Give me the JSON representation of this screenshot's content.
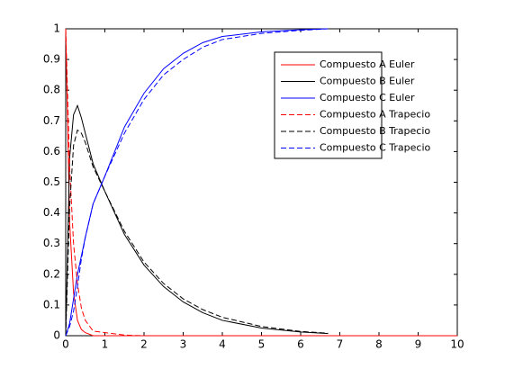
{
  "chart_data": {
    "type": "line",
    "x": [
      0,
      0.1,
      0.2,
      0.3,
      0.4,
      0.5,
      0.7,
      1,
      1.5,
      2,
      2.5,
      3,
      3.5,
      4,
      5,
      6,
      6.7,
      8,
      10
    ],
    "series": [
      {
        "name": "Compuesto A Euler",
        "color": "#ff0000",
        "dash": false,
        "values": [
          1,
          0.37,
          0.14,
          0.05,
          0.02,
          0.01,
          0,
          0,
          0,
          0,
          0,
          0,
          0,
          0,
          0,
          0,
          0,
          0,
          0
        ]
      },
      {
        "name": "Compuesto B Euler",
        "color": "#000000",
        "dash": false,
        "values": [
          0,
          0.58,
          0.72,
          0.75,
          0.71,
          0.66,
          0.56,
          0.47,
          0.33,
          0.23,
          0.16,
          0.11,
          0.075,
          0.05,
          0.025,
          0.012,
          0.007,
          null,
          null
        ]
      },
      {
        "name": "Compuesto C Euler",
        "color": "#0000ff",
        "dash": false,
        "values": [
          0,
          0.04,
          0.12,
          0.2,
          0.26,
          0.32,
          0.43,
          0.52,
          0.68,
          0.79,
          0.87,
          0.92,
          0.955,
          0.975,
          0.99,
          0.997,
          1,
          null,
          null
        ]
      },
      {
        "name": "Compuesto A Trapecio",
        "color": "#ff0000",
        "dash": true,
        "values": [
          1,
          0.55,
          0.3,
          0.17,
          0.09,
          0.05,
          0.015,
          0.01,
          0.002,
          0,
          0,
          0,
          0,
          0,
          0,
          0,
          0,
          0,
          0
        ]
      },
      {
        "name": "Compuesto B Trapecio",
        "color": "#000000",
        "dash": true,
        "values": [
          0,
          0.42,
          0.62,
          0.67,
          0.66,
          0.63,
          0.55,
          0.47,
          0.34,
          0.24,
          0.17,
          0.12,
          0.085,
          0.06,
          0.03,
          0.014,
          0.008,
          null,
          null
        ]
      },
      {
        "name": "Compuesto C Trapecio",
        "color": "#0000ff",
        "dash": true,
        "values": [
          0,
          0.03,
          0.08,
          0.16,
          0.25,
          0.32,
          0.43,
          0.52,
          0.66,
          0.77,
          0.85,
          0.9,
          0.94,
          0.965,
          0.985,
          0.995,
          1,
          null,
          null
        ]
      }
    ],
    "xlim": [
      0,
      10
    ],
    "xticks": [
      0,
      1,
      2,
      3,
      4,
      5,
      6,
      7,
      8,
      9,
      10
    ],
    "ylim": [
      0,
      1
    ],
    "yticks": [
      0,
      0.1,
      0.2,
      0.3,
      0.4,
      0.5,
      0.6,
      0.7,
      0.8,
      0.9,
      1
    ],
    "grid": false,
    "legend": "upper-right"
  }
}
